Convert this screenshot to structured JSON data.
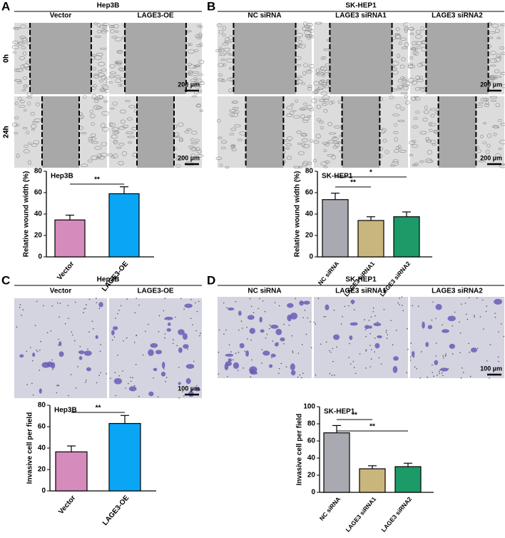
{
  "panels": [
    {
      "letter": "A",
      "title": "Hep3B",
      "columns": [
        "Vector",
        "LAGE3-OE"
      ],
      "rows": [
        "0h",
        "24h"
      ],
      "scale_bar": "200 µm"
    },
    {
      "letter": "B",
      "title": "SK-HEP1",
      "columns": [
        "NC siRNA",
        "LAGE3 siRNA1",
        "LAGE3 siRNA2"
      ],
      "rows": [
        "0h",
        "24h"
      ],
      "scale_bar": "200 µm"
    },
    {
      "letter": "C",
      "title": "Hep3B",
      "columns": [
        "Vector",
        "LAGE3-OE"
      ],
      "scale_bar": "100 µm"
    },
    {
      "letter": "D",
      "title": "SK-HEP1",
      "columns": [
        "NC siRNA",
        "LAGE3 siRNA1",
        "LAGE3 siRNA2"
      ],
      "scale_bar": "100 µm"
    }
  ],
  "chart_data": [
    {
      "type": "bar",
      "title": "Hep3B",
      "y_label": "Relative wound width (%)",
      "categories": [
        "Vector",
        "LAGE3-OE"
      ],
      "values": [
        34.5,
        59
      ],
      "errors": [
        4.5,
        6.5
      ],
      "colors": [
        "#d58bbb",
        "#0aa5f5"
      ],
      "ylim": [
        0,
        80
      ],
      "yticks": [
        0,
        20,
        40,
        60,
        80
      ],
      "significance": [
        {
          "label": "**",
          "between": [
            0,
            1
          ]
        }
      ]
    },
    {
      "type": "bar",
      "title": "SK-HEP1",
      "y_label": "Relative wound width (%)",
      "categories": [
        "NC siRNA",
        "LAGE3 siRNA1",
        "LAGE3 siRNA2"
      ],
      "values": [
        53.5,
        34,
        37.5
      ],
      "errors": [
        6,
        3.5,
        4.5
      ],
      "colors": [
        "#a9a9b1",
        "#c9b67c",
        "#1c9a68"
      ],
      "ylim": [
        0,
        80
      ],
      "yticks": [
        0,
        20,
        40,
        60,
        80
      ],
      "significance": [
        {
          "label": "*",
          "between": [
            0,
            2
          ]
        },
        {
          "label": "**",
          "between": [
            0,
            1
          ]
        }
      ]
    },
    {
      "type": "bar",
      "title": "Hep3B",
      "y_label": "Invasive cell per field",
      "categories": [
        "Vector",
        "LAGE3-OE"
      ],
      "values": [
        36.5,
        63
      ],
      "errors": [
        5.5,
        7.5
      ],
      "colors": [
        "#d58bbb",
        "#0aa5f5"
      ],
      "ylim": [
        0,
        80
      ],
      "yticks": [
        0,
        20,
        40,
        60,
        80
      ],
      "significance": [
        {
          "label": "**",
          "between": [
            0,
            1
          ]
        }
      ]
    },
    {
      "type": "bar",
      "title": "SK-HEP1",
      "y_label": "Invasive cell per field",
      "categories": [
        "NC siRNA",
        "LAGE3 siRNA1",
        "LAGE3 siRNA2"
      ],
      "values": [
        69.5,
        27.5,
        30
      ],
      "errors": [
        8.5,
        3.5,
        4
      ],
      "colors": [
        "#a9a9b1",
        "#c9b67c",
        "#1c9a68"
      ],
      "ylim": [
        0,
        100
      ],
      "yticks": [
        0,
        20,
        40,
        60,
        80,
        100
      ],
      "significance": [
        {
          "label": "**",
          "between": [
            0,
            1
          ]
        },
        {
          "label": "**",
          "between": [
            0,
            2
          ]
        }
      ]
    }
  ]
}
